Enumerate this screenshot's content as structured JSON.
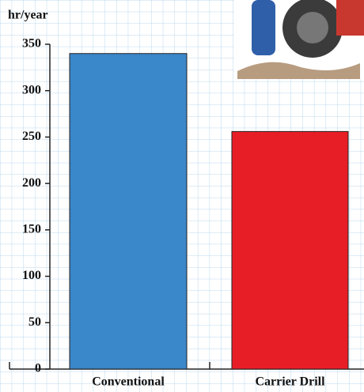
{
  "chart_data": {
    "type": "bar",
    "y_axis_label": "hr/year",
    "categories": [
      "Conventional",
      "Carrier Drill"
    ],
    "values": [
      340,
      256
    ],
    "colors": [
      "#3a87c9",
      "#e81e27"
    ],
    "ylim": [
      0,
      350
    ],
    "yticks": [
      0,
      50,
      100,
      150,
      200,
      250,
      300,
      350
    ]
  }
}
